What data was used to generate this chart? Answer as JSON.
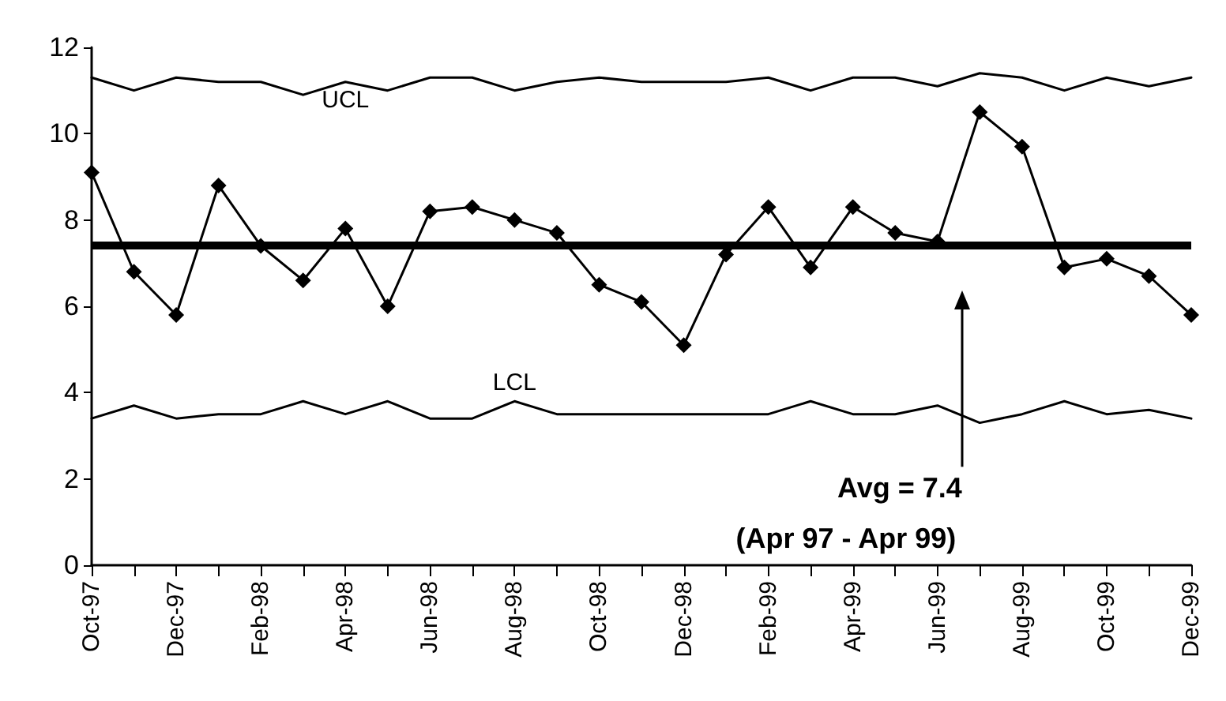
{
  "chart_data": {
    "type": "line",
    "categories": [
      "Oct-97",
      null,
      "Dec-97",
      null,
      "Feb-98",
      null,
      "Apr-98",
      null,
      "Jun-98",
      null,
      "Aug-98",
      null,
      "Oct-98",
      null,
      "Dec-98",
      null,
      "Feb-99",
      null,
      "Apr-99",
      null,
      "Jun-99",
      null,
      "Aug-99",
      null,
      "Oct-99",
      null,
      "Dec-99"
    ],
    "series": [
      {
        "color": "#000000",
        "marker": "diamond",
        "values": [
          9.1,
          6.8,
          5.8,
          8.8,
          7.4,
          6.6,
          7.8,
          6.0,
          8.2,
          8.3,
          8.0,
          7.7,
          6.5,
          6.1,
          5.1,
          7.2,
          8.3,
          6.9,
          8.3,
          7.7,
          7.5,
          10.5,
          9.7,
          6.9,
          7.1,
          6.7,
          5.8
        ]
      },
      {
        "name": "UCL",
        "color": "#000000",
        "marker": "none",
        "values": [
          11.3,
          11.0,
          11.3,
          11.2,
          11.2,
          10.9,
          11.2,
          11.0,
          11.3,
          11.3,
          11.0,
          11.2,
          11.3,
          11.2,
          11.2,
          11.2,
          11.3,
          11.0,
          11.3,
          11.3,
          11.1,
          11.4,
          11.3,
          11.0,
          11.3,
          11.1,
          11.3
        ]
      },
      {
        "name": "LCL",
        "color": "#000000",
        "marker": "none",
        "values": [
          3.4,
          3.7,
          3.4,
          3.5,
          3.5,
          3.8,
          3.5,
          3.8,
          3.4,
          3.4,
          3.8,
          3.5,
          3.5,
          3.5,
          3.5,
          3.5,
          3.5,
          3.8,
          3.5,
          3.5,
          3.7,
          3.3,
          3.5,
          3.8,
          3.5,
          3.6,
          3.4
        ]
      }
    ],
    "ylim": [
      0,
      12
    ],
    "yticks": [
      0,
      2,
      4,
      6,
      8,
      10,
      12
    ],
    "ref_lines": [
      {
        "axis": "y",
        "value": 7.4,
        "color": "#000000"
      }
    ],
    "annotations": [
      "Avg = 7.4",
      "(Apr 97 - Apr 99)"
    ]
  }
}
